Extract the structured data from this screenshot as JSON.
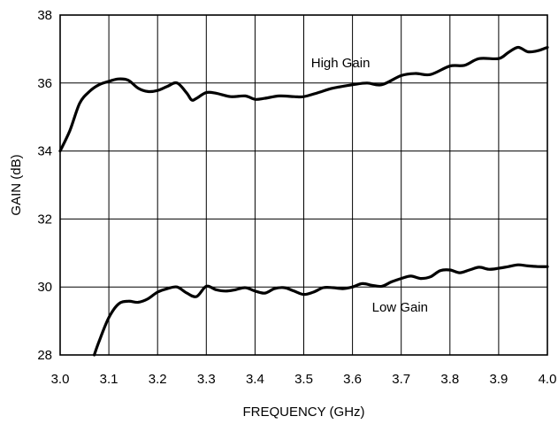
{
  "chart_data": {
    "type": "line",
    "title": "",
    "xlabel": "FREQUENCY (GHz)",
    "ylabel": "GAIN (dB)",
    "xlim": [
      3.0,
      4.0
    ],
    "ylim": [
      28,
      38
    ],
    "xticks": [
      3.0,
      3.1,
      3.2,
      3.3,
      3.4,
      3.5,
      3.6,
      3.7,
      3.8,
      3.9,
      4.0
    ],
    "xtick_labels": [
      "3.0",
      "3.1",
      "3.2",
      "3.3",
      "3.4",
      "3.5",
      "3.6",
      "3.7",
      "3.8",
      "3.9",
      "4.0"
    ],
    "yticks": [
      28,
      30,
      32,
      34,
      36,
      38
    ],
    "ytick_labels": [
      "28",
      "30",
      "32",
      "34",
      "36",
      "38"
    ],
    "grid": true,
    "series": [
      {
        "name": "High Gain",
        "x": [
          3.0,
          3.02,
          3.04,
          3.06,
          3.08,
          3.1,
          3.12,
          3.14,
          3.16,
          3.18,
          3.2,
          3.22,
          3.24,
          3.26,
          3.27,
          3.28,
          3.3,
          3.32,
          3.35,
          3.38,
          3.4,
          3.42,
          3.45,
          3.48,
          3.5,
          3.53,
          3.56,
          3.6,
          3.63,
          3.66,
          3.7,
          3.73,
          3.76,
          3.8,
          3.83,
          3.86,
          3.9,
          3.92,
          3.94,
          3.96,
          3.98,
          4.0
        ],
        "y": [
          34.0,
          34.6,
          35.4,
          35.75,
          35.95,
          36.05,
          36.12,
          36.08,
          35.85,
          35.75,
          35.78,
          35.9,
          36.0,
          35.7,
          35.5,
          35.55,
          35.72,
          35.7,
          35.6,
          35.62,
          35.52,
          35.55,
          35.62,
          35.6,
          35.6,
          35.72,
          35.85,
          35.95,
          36.0,
          35.95,
          36.22,
          36.28,
          36.25,
          36.5,
          36.52,
          36.72,
          36.72,
          36.9,
          37.05,
          36.92,
          36.95,
          37.05
        ]
      },
      {
        "name": "Low Gain",
        "x": [
          3.07,
          3.08,
          3.1,
          3.12,
          3.14,
          3.16,
          3.18,
          3.2,
          3.22,
          3.24,
          3.26,
          3.28,
          3.3,
          3.32,
          3.34,
          3.36,
          3.38,
          3.4,
          3.42,
          3.44,
          3.46,
          3.48,
          3.5,
          3.52,
          3.54,
          3.56,
          3.58,
          3.6,
          3.62,
          3.64,
          3.66,
          3.68,
          3.7,
          3.72,
          3.74,
          3.76,
          3.78,
          3.8,
          3.82,
          3.84,
          3.86,
          3.88,
          3.9,
          3.92,
          3.94,
          3.96,
          3.98,
          4.0
        ],
        "y": [
          28.0,
          28.4,
          29.1,
          29.5,
          29.58,
          29.55,
          29.65,
          29.85,
          29.95,
          30.0,
          29.82,
          29.72,
          30.02,
          29.92,
          29.88,
          29.92,
          29.98,
          29.88,
          29.82,
          29.95,
          29.98,
          29.88,
          29.78,
          29.85,
          29.98,
          29.98,
          29.95,
          30.0,
          30.1,
          30.05,
          30.02,
          30.15,
          30.25,
          30.32,
          30.25,
          30.3,
          30.48,
          30.5,
          30.42,
          30.5,
          30.58,
          30.52,
          30.55,
          30.6,
          30.65,
          30.62,
          30.6,
          30.6
        ]
      }
    ]
  }
}
